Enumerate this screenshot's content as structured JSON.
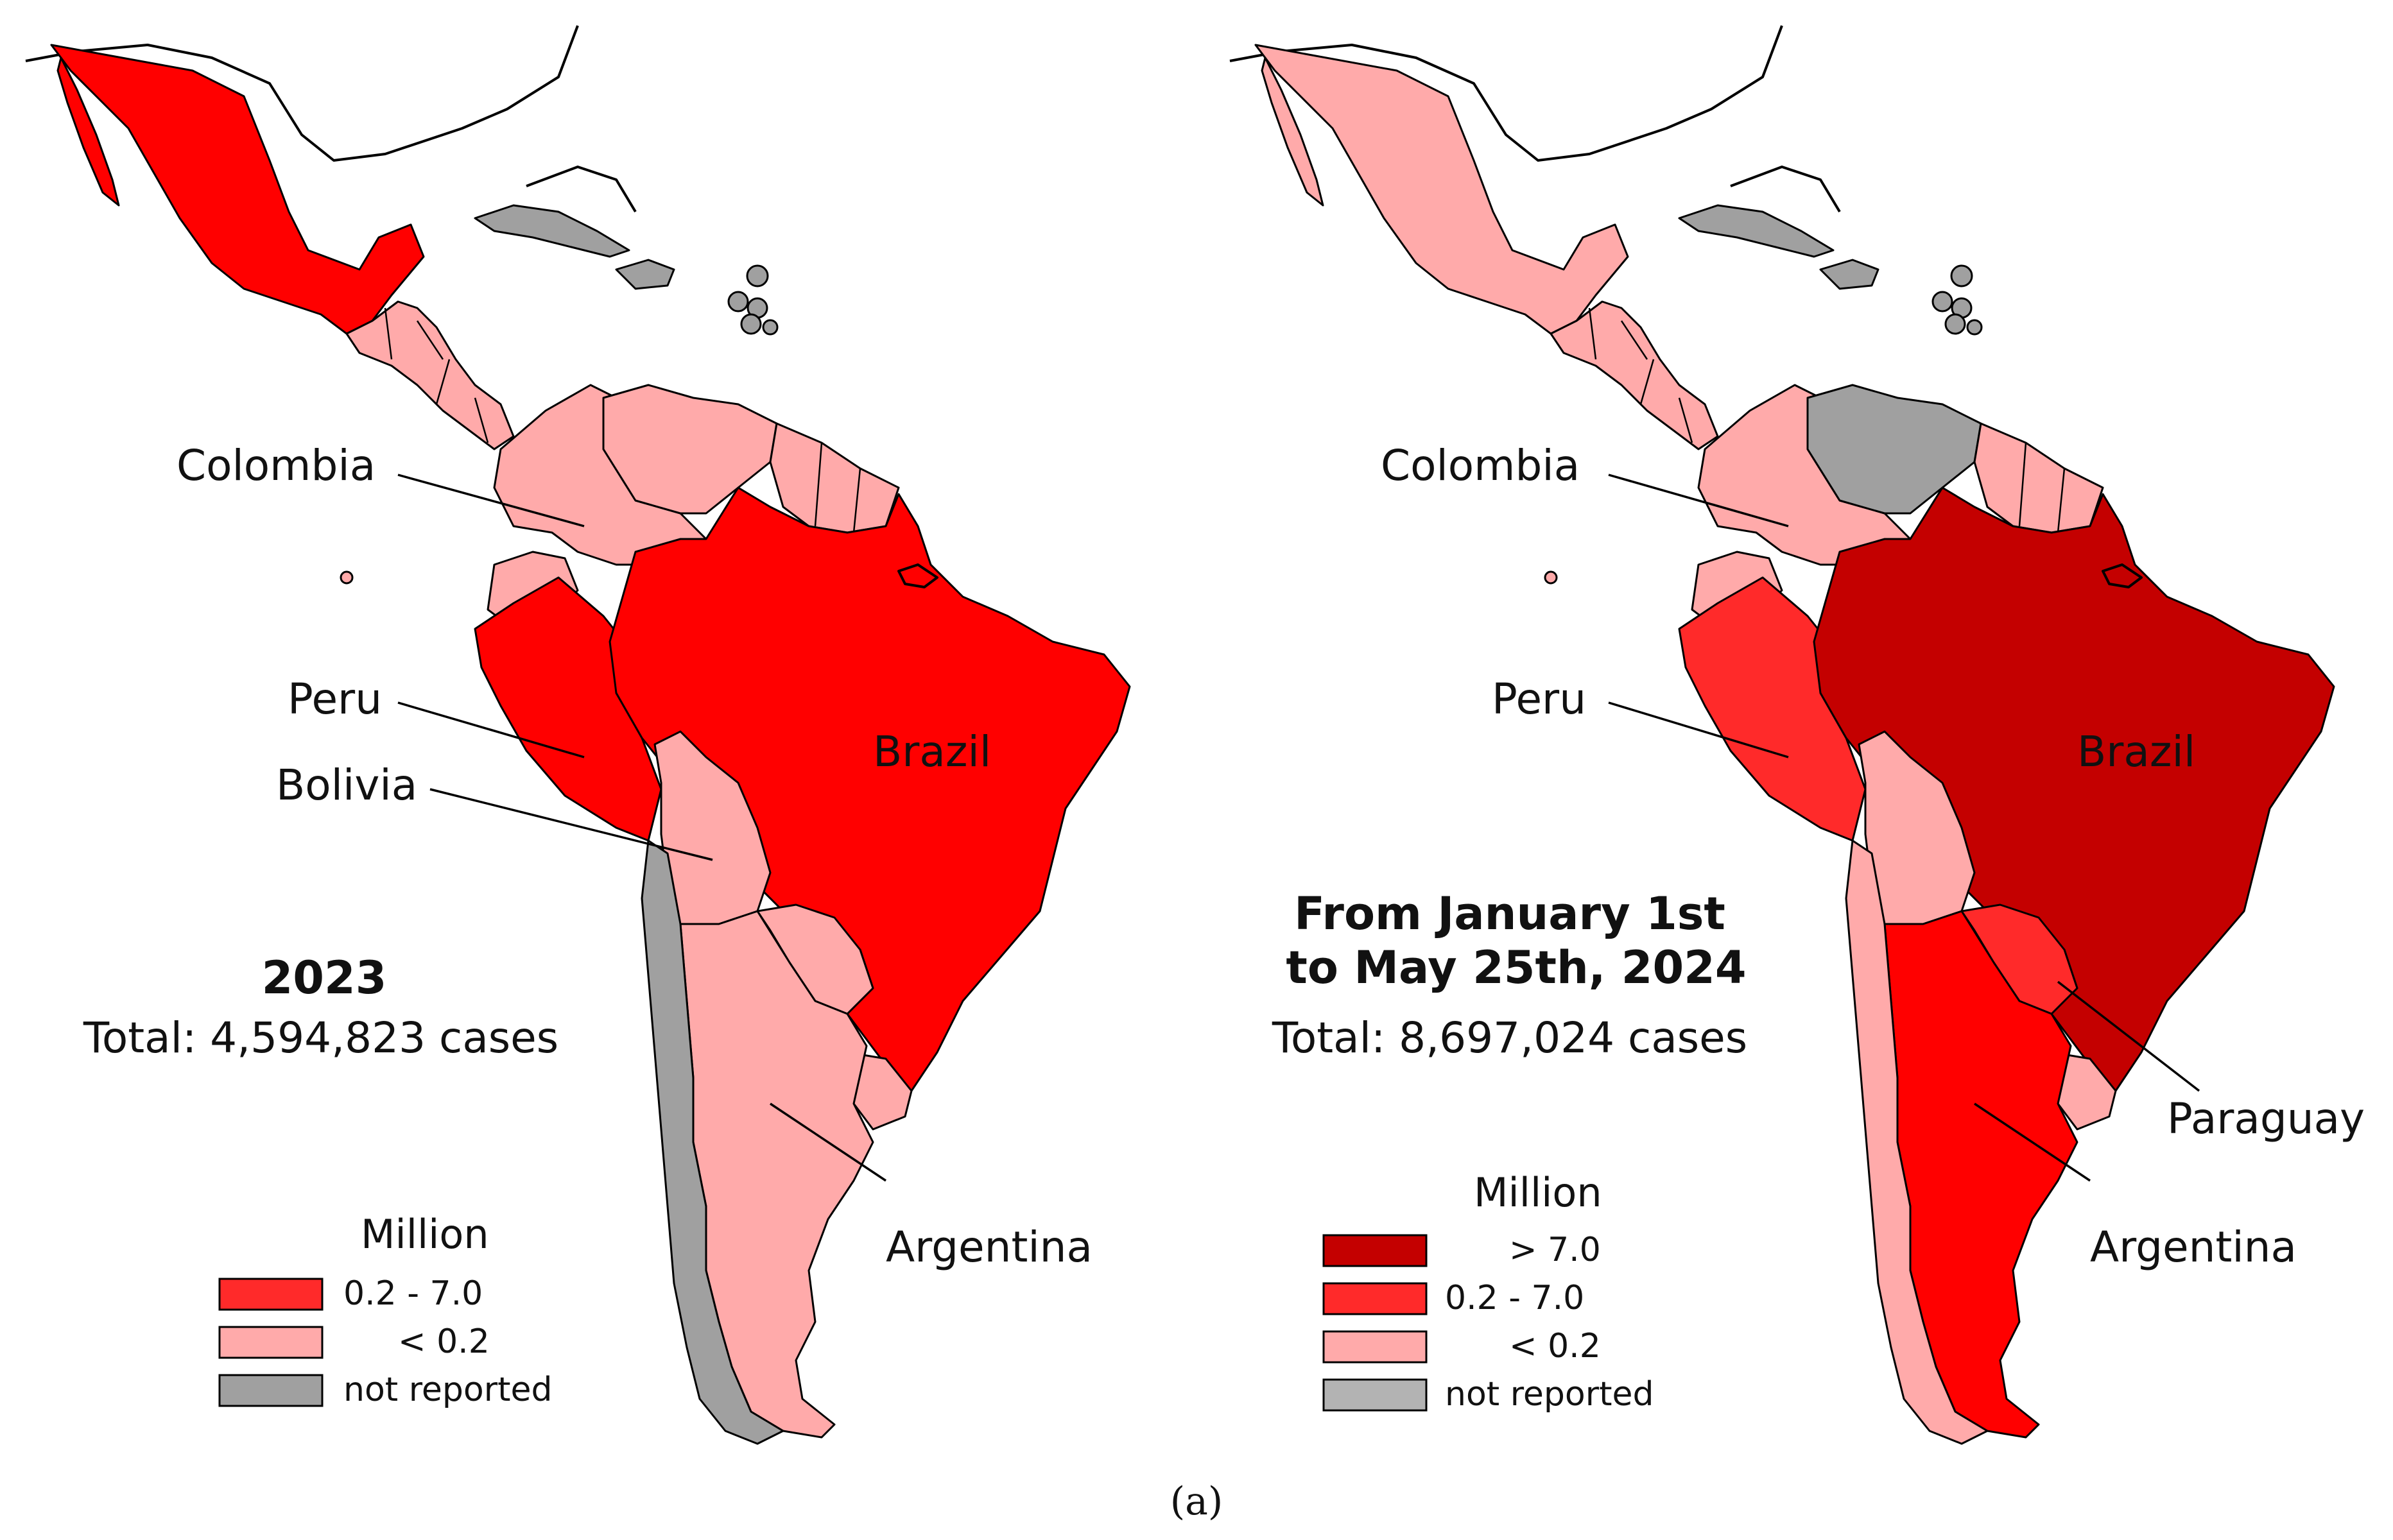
{
  "colors": {
    "gt_7": "#c40000",
    "range_02_7": "#ff0000",
    "range_02_7_light": "#ff2a2a",
    "lt_02": "#ffaaaa",
    "not_reported": "#a0a0a0",
    "not_reported_legend": "#b3b3b3",
    "ocean": "#ffffff",
    "line": "#000000"
  },
  "maps": [
    {
      "id": "2023",
      "title_lines": [
        "2023"
      ],
      "total": "Total: 4,594,823 cases",
      "labels": {
        "colombia": "Colombia",
        "peru": "Peru",
        "bolivia": "Bolivia",
        "brazil": "Brazil",
        "argentina": "Argentina"
      },
      "legend": {
        "title": "Million",
        "items": [
          {
            "label": "0.2 - 7.0",
            "color": "#ff2a2a"
          },
          {
            "label": "< 0.2",
            "color": "#ffaaaa"
          },
          {
            "label": "not reported",
            "color": "#a0a0a0"
          }
        ]
      },
      "fills": {
        "mexico": "range_02_7",
        "central_america": "lt_02",
        "caribbean": "not_reported",
        "colombia": "lt_02",
        "venezuela": "lt_02",
        "guianas": "lt_02",
        "ecuador": "lt_02",
        "peru": "range_02_7",
        "brazil": "range_02_7",
        "bolivia": "lt_02",
        "paraguay": "lt_02",
        "chile": "not_reported",
        "argentina": "lt_02",
        "uruguay": "lt_02"
      }
    },
    {
      "id": "2024",
      "title_lines": [
        "From January 1st",
        "to May 25th, 2024"
      ],
      "total": "Total: 8,697,024 cases",
      "labels": {
        "colombia": "Colombia",
        "peru": "Peru",
        "brazil": "Brazil",
        "paraguay": "Paraguay",
        "argentina": "Argentina"
      },
      "legend": {
        "title": "Million",
        "items": [
          {
            "label": "> 7.0",
            "color": "#c40000"
          },
          {
            "label": "0.2 - 7.0",
            "color": "#ff2a2a"
          },
          {
            "label": "< 0.2",
            "color": "#ffaaaa"
          },
          {
            "label": "not reported",
            "color": "#b3b3b3"
          }
        ]
      },
      "fills": {
        "mexico": "lt_02",
        "central_america": "lt_02",
        "caribbean": "not_reported",
        "colombia": "lt_02",
        "venezuela": "not_reported",
        "guianas": "lt_02",
        "ecuador": "lt_02",
        "peru": "range_02_7_light",
        "brazil": "gt_7",
        "bolivia": "lt_02",
        "paraguay": "range_02_7_light",
        "chile": "lt_02",
        "argentina": "range_02_7",
        "uruguay": "lt_02"
      }
    }
  ],
  "caption": "(a)"
}
